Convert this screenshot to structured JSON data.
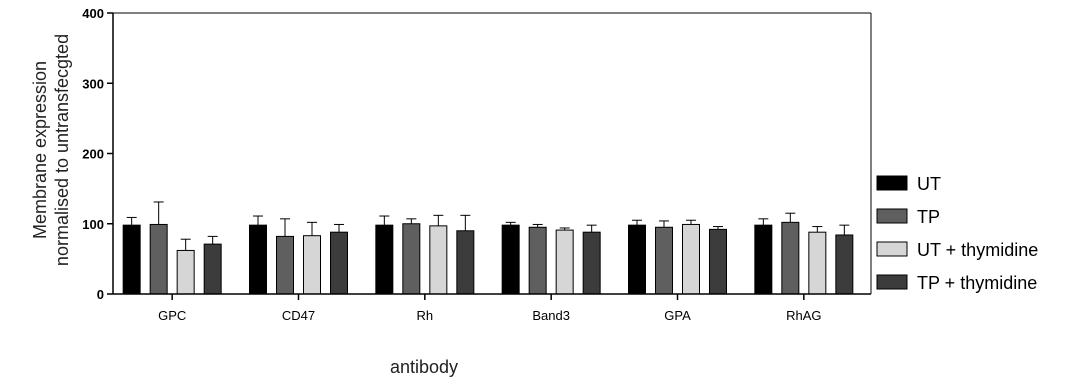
{
  "chart_data": {
    "type": "bar",
    "xlabel": "antibody",
    "ylabel_lines": [
      "Membrane expression",
      "normalised to untransfecgted"
    ],
    "ylim": [
      0,
      400
    ],
    "yticks": [
      0,
      100,
      200,
      300,
      400
    ],
    "categories": [
      "GPC",
      "CD47",
      "Rh",
      "Band3",
      "GPA",
      "RhAG"
    ],
    "series": [
      {
        "name": "UT",
        "color": "#000000",
        "values": [
          98,
          98,
          98,
          98,
          98,
          98
        ],
        "errors": [
          11,
          13,
          13,
          4,
          7,
          9
        ]
      },
      {
        "name": "TP",
        "color": "#5f5f5f",
        "values": [
          99,
          82,
          100,
          95,
          95,
          102
        ],
        "errors": [
          32,
          25,
          7,
          4,
          9,
          13
        ]
      },
      {
        "name": "UT + thymidine",
        "color": "#d6d6d6",
        "values": [
          62,
          83,
          97,
          91,
          99,
          88
        ],
        "errors": [
          16,
          19,
          15,
          3,
          6,
          8
        ]
      },
      {
        "name": "TP + thymidine",
        "color": "#3c3c3c",
        "values": [
          71,
          88,
          90,
          88,
          92,
          84
        ],
        "errors": [
          11,
          11,
          22,
          10,
          4,
          14
        ]
      }
    ],
    "legend_position": "right"
  }
}
